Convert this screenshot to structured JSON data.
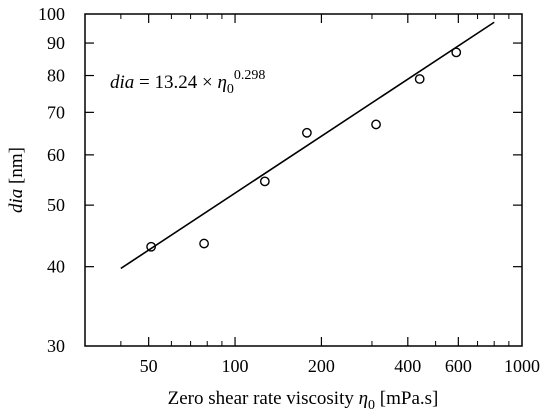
{
  "chart_data": {
    "type": "scatter",
    "x_scale": "log",
    "y_scale": "log",
    "xlabel": {
      "prefix": "Zero shear rate viscosity ",
      "symbol": "η",
      "sub": "0",
      "unit": " [mPa.s]"
    },
    "ylabel": {
      "symbol": "dia",
      "unit": " [nm]"
    },
    "xlim": [
      30,
      1000
    ],
    "ylim": [
      30,
      100
    ],
    "x_ticks": [
      50,
      100,
      200,
      400,
      600,
      1000
    ],
    "y_ticks": [
      30,
      40,
      50,
      60,
      70,
      80,
      90,
      100
    ],
    "x_minor_ticks": [
      40,
      60,
      70,
      80,
      90,
      300,
      500,
      700,
      800,
      900
    ],
    "grid": false,
    "series": [
      {
        "marker": "open-circle",
        "points": [
          {
            "x": 51,
            "y": 43.0
          },
          {
            "x": 78,
            "y": 43.5
          },
          {
            "x": 127,
            "y": 54.5
          },
          {
            "x": 178,
            "y": 65.0
          },
          {
            "x": 310,
            "y": 67.0
          },
          {
            "x": 440,
            "y": 79.0
          },
          {
            "x": 590,
            "y": 87.0
          }
        ]
      }
    ],
    "fit_line": {
      "coef": 13.24,
      "exponent": 0.298,
      "x_range": [
        40,
        800
      ]
    },
    "annotation": {
      "lhs": "dia",
      "rhs": " = 13.24 × ",
      "symbol": "η",
      "sub": "0",
      "sup": "0.298",
      "position": "top-left"
    }
  }
}
